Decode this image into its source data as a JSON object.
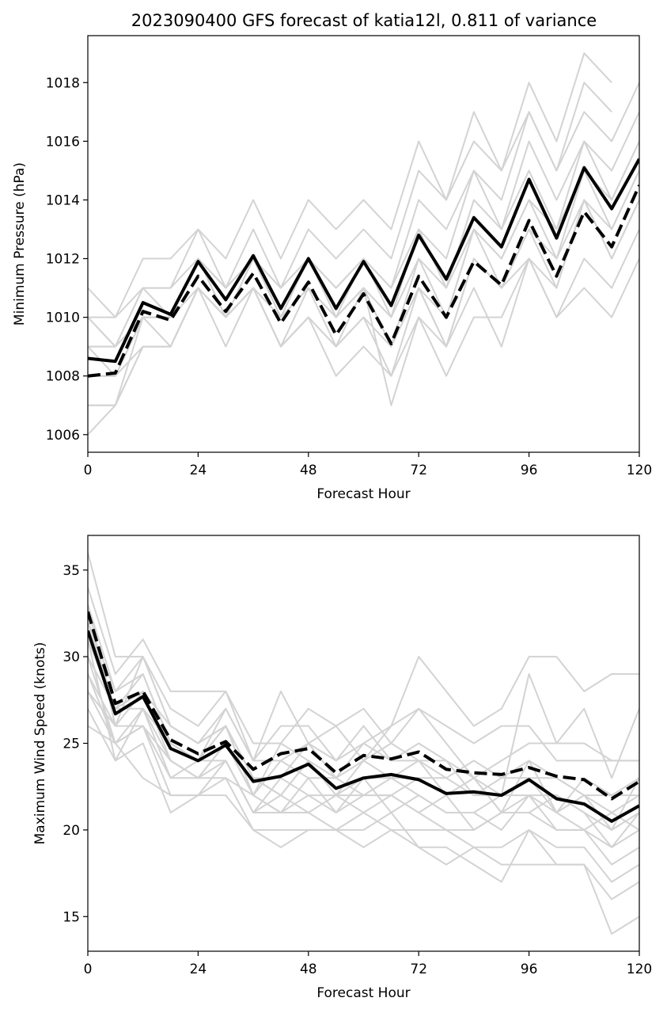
{
  "title": "2023090400 GFS forecast of katia12l, 0.811 of variance",
  "colors": {
    "ensemble": "#d3d3d3",
    "mean": "#000000",
    "background": "#ffffff"
  },
  "chart_data": [
    {
      "type": "line",
      "xlabel": "Forecast Hour",
      "ylabel": "Minimum Pressure (hPa)",
      "xlim": [
        0,
        120
      ],
      "ylim": [
        1005.4,
        1019.6
      ],
      "xticks": [
        0,
        24,
        48,
        72,
        96,
        120
      ],
      "yticks": [
        1006,
        1008,
        1010,
        1012,
        1014,
        1016,
        1018
      ],
      "x": [
        0,
        6,
        12,
        18,
        24,
        30,
        36,
        42,
        48,
        54,
        60,
        66,
        72,
        78,
        84,
        90,
        96,
        102,
        108,
        114,
        120
      ],
      "ensemble_members": [
        [
          1011,
          1010,
          1012,
          1012,
          1013,
          1012,
          1014,
          1012,
          1014,
          1013,
          1014,
          1013,
          1016,
          1014,
          1017,
          1015,
          1018,
          1016,
          1019,
          1018,
          null
        ],
        [
          1010,
          1010,
          1011,
          1011,
          1013,
          1011,
          1013,
          1011,
          1013,
          1012,
          1013,
          1012,
          1015,
          1014,
          1016,
          1015,
          1017,
          1015,
          1018,
          1017,
          null
        ],
        [
          1009,
          1009,
          1011,
          1010,
          1012,
          1011,
          1012,
          1011,
          1012,
          1011,
          1012,
          1011,
          1014,
          1013,
          1015,
          1014,
          1017,
          1015,
          1017,
          1016,
          1018
        ],
        [
          1009,
          1009,
          1010,
          1010,
          1012,
          1011,
          1012,
          1010,
          1012,
          1011,
          1012,
          1011,
          1013,
          1012,
          1015,
          1013,
          1016,
          1014,
          1016,
          1015,
          1017
        ],
        [
          1008,
          1008,
          1010,
          1010,
          1012,
          1010,
          1012,
          1010,
          1012,
          1010,
          1012,
          1010,
          1013,
          1011,
          1014,
          1013,
          1015,
          1013,
          1016,
          1014,
          1016
        ],
        [
          1008,
          1008,
          1010,
          1010,
          1011,
          1010,
          1011,
          1010,
          1011,
          1010,
          1011,
          1010,
          1012,
          1011,
          1013,
          1012,
          1014,
          1013,
          1015,
          1014,
          1016
        ],
        [
          1007,
          1007,
          1010,
          1009,
          1011,
          1010,
          1011,
          1009,
          1011,
          1009,
          1011,
          1009,
          1012,
          1010,
          1013,
          1012,
          1014,
          1012,
          1015,
          1013,
          1015
        ],
        [
          1007,
          1007,
          1009,
          1009,
          1011,
          1010,
          1011,
          1009,
          1010,
          1009,
          1010,
          1009,
          1011,
          1010,
          1013,
          1011,
          1013,
          1012,
          1014,
          1013,
          1015
        ],
        [
          1006,
          1007,
          1009,
          1009,
          1011,
          1009,
          1011,
          1009,
          1010,
          1008,
          1009,
          1008,
          1010,
          1009,
          1012,
          1011,
          1012,
          1011,
          1014,
          1012,
          1014
        ],
        [
          1009,
          1008,
          1009,
          1009,
          1011,
          1010,
          1011,
          1009,
          1010,
          1009,
          1010,
          1008,
          1011,
          1009,
          1012,
          1011,
          1013,
          1011,
          1014,
          1012,
          1014
        ],
        [
          1010,
          1009,
          1010,
          1010,
          1012,
          1011,
          1012,
          1010,
          1011,
          1010,
          1011,
          1009,
          1011,
          1009,
          1011,
          1009,
          1012,
          1010,
          1011,
          1010,
          1012
        ],
        [
          1010,
          1009,
          1011,
          1011,
          1012,
          1010,
          1012,
          1011,
          1012,
          1010,
          1011,
          1007,
          1010,
          1008,
          1010,
          1010,
          1012,
          1010,
          1012,
          1011,
          1013
        ]
      ],
      "series": [
        {
          "style": "solid",
          "values": [
            1008.6,
            1008.5,
            1010.5,
            1010.1,
            1011.9,
            1010.6,
            1012.1,
            1010.3,
            1012.0,
            1010.3,
            1011.9,
            1010.4,
            1012.8,
            1011.3,
            1013.4,
            1012.4,
            1014.7,
            1012.7,
            1015.1,
            1013.7,
            1015.4
          ]
        },
        {
          "style": "dashed",
          "values": [
            1008.0,
            1008.1,
            1010.2,
            1009.9,
            1011.4,
            1010.2,
            1011.5,
            1009.8,
            1011.2,
            1009.4,
            1010.8,
            1009.1,
            1011.4,
            1010.0,
            1011.9,
            1011.1,
            1013.3,
            1011.4,
            1013.6,
            1012.4,
            1014.5
          ]
        }
      ]
    },
    {
      "type": "line",
      "xlabel": "Forecast Hour",
      "ylabel": "Maximum Wind Speed (knots)",
      "xlim": [
        0,
        120
      ],
      "ylim": [
        13,
        37
      ],
      "xticks": [
        0,
        24,
        48,
        72,
        96,
        120
      ],
      "yticks": [
        15,
        20,
        25,
        30,
        35
      ],
      "x": [
        0,
        6,
        12,
        18,
        24,
        30,
        36,
        42,
        48,
        54,
        60,
        66,
        72,
        78,
        84,
        90,
        96,
        102,
        108,
        114,
        120
      ],
      "ensemble_members": [
        [
          36,
          30,
          30,
          27,
          26,
          28,
          24,
          28,
          25,
          26,
          24,
          26,
          30,
          28,
          26,
          27,
          30,
          30,
          28,
          29,
          29
        ],
        [
          34,
          29,
          31,
          28,
          28,
          28,
          25,
          25,
          27,
          26,
          27,
          25,
          27,
          25,
          23,
          22,
          29,
          25,
          27,
          23,
          27
        ],
        [
          33,
          28,
          30,
          26,
          25,
          27,
          24,
          26,
          26,
          24,
          25,
          26,
          27,
          26,
          25,
          26,
          26,
          24,
          24,
          24,
          24
        ],
        [
          32,
          28,
          29,
          25,
          24,
          27,
          24,
          24,
          25,
          24,
          26,
          24,
          25,
          24,
          23,
          24,
          25,
          25,
          25,
          24,
          24
        ],
        [
          31,
          27,
          28,
          26,
          25,
          26,
          23,
          23,
          25,
          23,
          24,
          25,
          24,
          23,
          24,
          23,
          24,
          23,
          22,
          22,
          23
        ],
        [
          30,
          27,
          27,
          25,
          24,
          26,
          23,
          22,
          24,
          22,
          23,
          23,
          24,
          24,
          22,
          23,
          23,
          21,
          22,
          21,
          22
        ],
        [
          29,
          26,
          28,
          24,
          23,
          25,
          22,
          24,
          23,
          23,
          22,
          22,
          23,
          22,
          23,
          21,
          22,
          22,
          21,
          20,
          21
        ],
        [
          29,
          25,
          27,
          24,
          23,
          25,
          22,
          21,
          22,
          21,
          23,
          21,
          22,
          21,
          21,
          20,
          22,
          20,
          20,
          19,
          20
        ],
        [
          28,
          26,
          26,
          23,
          24,
          24,
          21,
          22,
          21,
          22,
          21,
          22,
          21,
          20,
          20,
          21,
          21,
          20,
          20,
          18,
          19
        ],
        [
          28,
          25,
          26,
          22,
          22,
          24,
          21,
          21,
          21,
          20,
          21,
          20,
          20,
          20,
          19,
          19,
          20,
          19,
          19,
          17,
          18
        ],
        [
          27,
          24,
          25,
          21,
          22,
          23,
          20,
          19,
          20,
          20,
          19,
          20,
          19,
          19,
          18,
          17,
          20,
          18,
          18,
          16,
          17
        ],
        [
          26,
          25,
          23,
          22,
          22,
          22,
          20,
          20,
          20,
          20,
          20,
          21,
          19,
          18,
          19,
          18,
          18,
          18,
          18,
          14,
          15
        ],
        [
          31,
          24,
          27,
          23,
          23,
          24,
          21,
          23,
          22,
          22,
          22,
          23,
          22,
          21,
          21,
          22,
          22,
          21,
          20,
          21,
          20
        ],
        [
          30,
          25,
          26,
          24,
          23,
          23,
          22,
          21,
          23,
          21,
          22,
          22,
          21,
          22,
          20,
          21,
          21,
          22,
          21,
          19,
          21
        ],
        [
          32,
          27,
          29,
          25,
          24,
          26,
          23,
          22,
          24,
          22,
          24,
          23,
          23,
          23,
          22,
          22,
          23,
          23,
          22,
          20,
          23
        ],
        [
          33,
          26,
          30,
          26,
          25,
          26,
          22,
          25,
          24,
          23,
          25,
          24,
          24,
          22,
          23,
          21,
          24,
          21,
          23,
          22,
          22
        ]
      ],
      "series": [
        {
          "style": "solid",
          "values": [
            31.5,
            26.7,
            27.7,
            24.7,
            24.0,
            24.9,
            22.8,
            23.1,
            23.8,
            22.4,
            23.0,
            23.2,
            22.9,
            22.1,
            22.2,
            22.0,
            22.9,
            21.8,
            21.5,
            20.5,
            21.4
          ]
        },
        {
          "style": "dashed",
          "values": [
            32.6,
            27.3,
            28.0,
            25.2,
            24.4,
            25.1,
            23.5,
            24.4,
            24.7,
            23.3,
            24.3,
            24.1,
            24.5,
            23.5,
            23.3,
            23.2,
            23.6,
            23.1,
            22.9,
            21.8,
            22.8
          ]
        }
      ]
    }
  ]
}
